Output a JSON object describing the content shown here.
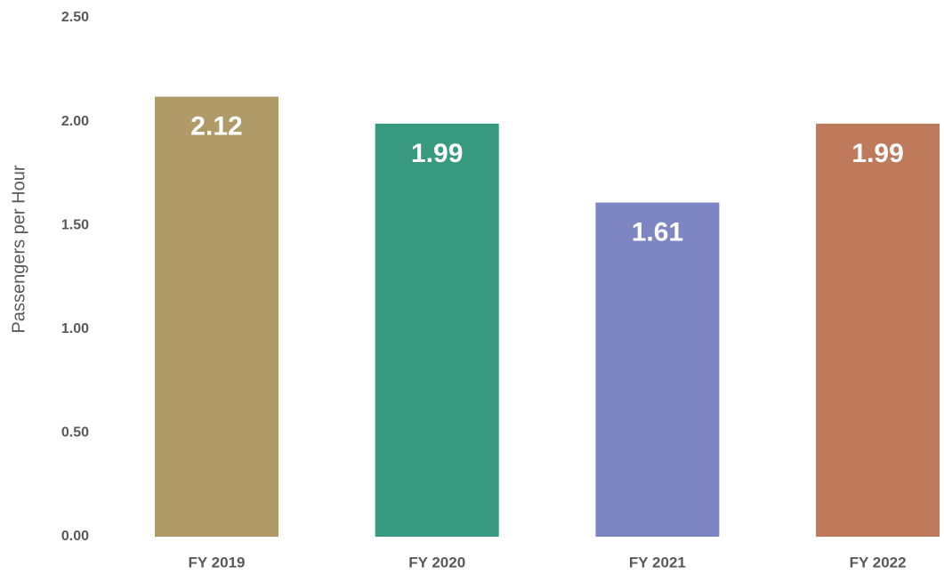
{
  "chart_data": {
    "type": "bar",
    "ylabel": "Passengers per Hour",
    "categories": [
      "FY 2019",
      "FY 2020",
      "FY 2021",
      "FY 2022"
    ],
    "values": [
      2.12,
      1.99,
      1.61,
      1.99
    ],
    "colors": [
      "#b09a68",
      "#389b7f",
      "#7d86c2",
      "#be7a5a"
    ],
    "ylim": [
      0,
      2.5
    ],
    "yticks": [
      {
        "value": 0,
        "label": "0.00"
      },
      {
        "value": 0.5,
        "label": "0.50"
      },
      {
        "value": 1,
        "label": "1.00"
      },
      {
        "value": 1.5,
        "label": "1.50"
      },
      {
        "value": 2,
        "label": "2.00"
      },
      {
        "value": 2.5,
        "label": "2.50"
      }
    ],
    "grid": false
  }
}
